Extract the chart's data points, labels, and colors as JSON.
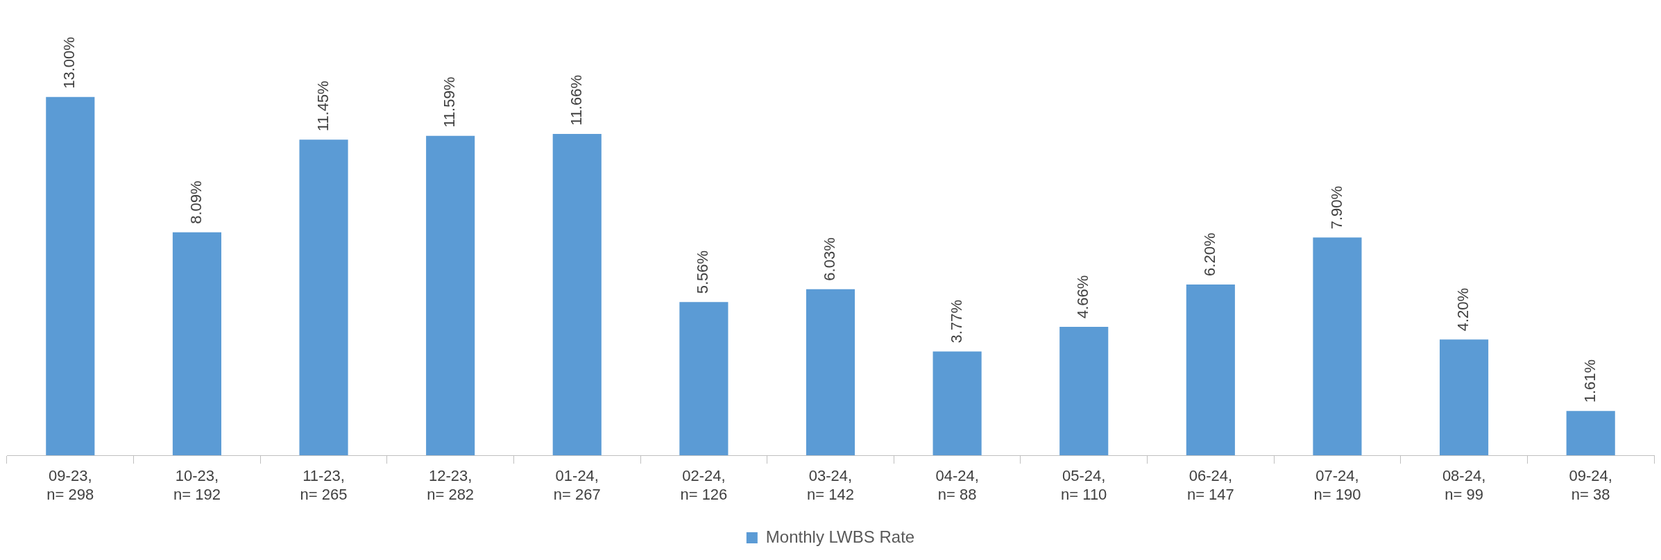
{
  "chart_data": {
    "type": "bar",
    "categories": [
      "09-23,\nn= 298",
      "10-23,\nn= 192",
      "11-23,\nn= 265",
      "12-23,\nn= 282",
      "01-24,\nn= 267",
      "02-24,\nn= 126",
      "03-24,\nn= 142",
      "04-24,\nn= 88",
      "05-24,\nn= 110",
      "06-24,\nn= 147",
      "07-24,\nn= 190",
      "08-24,\nn= 99",
      "09-24,\nn= 38"
    ],
    "series": [
      {
        "name": "Monthly LWBS Rate",
        "color": "#5b9bd5",
        "values": [
          13.0,
          8.09,
          11.45,
          11.59,
          11.66,
          5.56,
          6.03,
          3.77,
          4.66,
          6.2,
          7.9,
          4.2,
          1.61
        ],
        "value_labels": [
          "13.00%",
          "8.09%",
          "11.45%",
          "11.59%",
          "11.66%",
          "5.56%",
          "6.03%",
          "3.77%",
          "4.66%",
          "6.20%",
          "7.90%",
          "4.20%",
          "1.61%"
        ]
      }
    ],
    "legend": "bottom",
    "grid": false
  }
}
